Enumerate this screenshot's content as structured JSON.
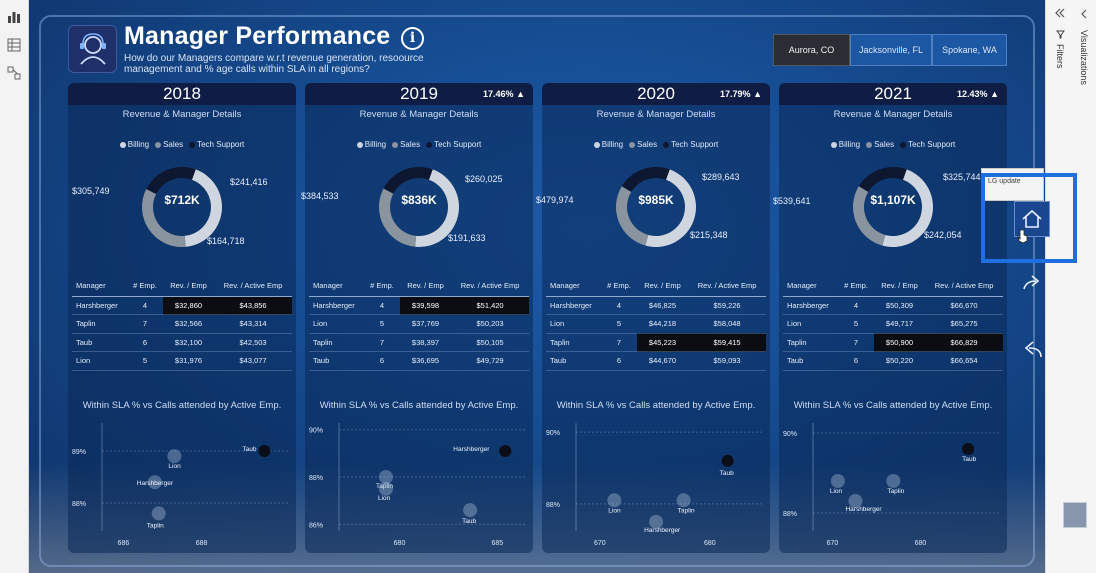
{
  "report": {
    "title": "Manager Performance",
    "subtitle": "How do our Managers compare w.r.t revenue generation, resoource management and % age calls within SLA in all regions?",
    "info_glyph": "i"
  },
  "regions": [
    {
      "label": "Aurora, CO",
      "selected": true
    },
    {
      "label": "Jacksonville, FL",
      "selected": false
    },
    {
      "label": "Spokane, WA",
      "selected": false
    }
  ],
  "legend": [
    "Billing",
    "Sales",
    "Tech Support"
  ],
  "section_title": "Revenue & Manager Details",
  "table_headers": [
    "Manager",
    "# Emp.",
    "Rev. / Emp",
    "Rev. / Active Emp"
  ],
  "scatter_title": "Within SLA % vs Calls attended by Active Emp.",
  "colors": {
    "billing": "#cfd6df",
    "sales": "#8a949f",
    "tech_support": "#0d1730",
    "highlight": "#0b0d12"
  },
  "years": [
    {
      "year": "2018",
      "growth": "",
      "donut": {
        "total": "$712K",
        "labels": [
          "$305,749",
          "$241,416",
          "$164,718"
        ],
        "values": [
          305749,
          241416,
          164718
        ]
      },
      "rows": [
        {
          "manager": "Harshberger",
          "emp": "4",
          "rev_emp": "$32,860",
          "rev_active": "$43,856",
          "hl": true
        },
        {
          "manager": "Taplin",
          "emp": "7",
          "rev_emp": "$32,566",
          "rev_active": "$43,314",
          "hl": false
        },
        {
          "manager": "Taub",
          "emp": "6",
          "rev_emp": "$32,100",
          "rev_active": "$42,503",
          "hl": false
        },
        {
          "manager": "Lion",
          "emp": "5",
          "rev_emp": "$31,976",
          "rev_active": "$43,077",
          "hl": false
        }
      ],
      "scatter": {
        "y_ticks": [
          "89%",
          "88%"
        ],
        "x_ticks": [
          "686",
          "688"
        ],
        "points": [
          {
            "label": "Taub",
            "x": 689.6,
            "y": 89.0,
            "dark": true
          },
          {
            "label": "Lion",
            "x": 687.3,
            "y": 88.9,
            "dark": false
          },
          {
            "label": "Harshberger",
            "x": 686.8,
            "y": 88.4,
            "dark": false
          },
          {
            "label": "Taplin",
            "x": 686.9,
            "y": 87.8,
            "dark": false
          }
        ]
      }
    },
    {
      "year": "2019",
      "growth": "17.46%",
      "donut": {
        "total": "$836K",
        "labels": [
          "$384,533",
          "$260,025",
          "$191,633"
        ],
        "values": [
          384533,
          260025,
          191633
        ]
      },
      "rows": [
        {
          "manager": "Harshberger",
          "emp": "4",
          "rev_emp": "$39,598",
          "rev_active": "$51,420",
          "hl": true
        },
        {
          "manager": "Lion",
          "emp": "5",
          "rev_emp": "$37,769",
          "rev_active": "$50,203",
          "hl": false
        },
        {
          "manager": "Taplin",
          "emp": "7",
          "rev_emp": "$38,397",
          "rev_active": "$50,105",
          "hl": false
        },
        {
          "manager": "Taub",
          "emp": "6",
          "rev_emp": "$36,695",
          "rev_active": "$49,729",
          "hl": false
        }
      ],
      "scatter": {
        "y_ticks": [
          "90%",
          "88%",
          "86%"
        ],
        "x_ticks": [
          "680",
          "685"
        ],
        "points": [
          {
            "label": "Harshberger",
            "x": 685.4,
            "y": 89.1,
            "dark": true
          },
          {
            "label": "Taplin",
            "x": 679.3,
            "y": 88.0,
            "dark": false
          },
          {
            "label": "Lion",
            "x": 679.3,
            "y": 87.5,
            "dark": false
          },
          {
            "label": "Taub",
            "x": 683.6,
            "y": 86.6,
            "dark": false
          }
        ]
      }
    },
    {
      "year": "2020",
      "growth": "17.79%",
      "donut": {
        "total": "$985K",
        "labels": [
          "$479,974",
          "$289,643",
          "$215,348"
        ],
        "values": [
          479974,
          289643,
          215348
        ]
      },
      "rows": [
        {
          "manager": "Harshberger",
          "emp": "4",
          "rev_emp": "$46,825",
          "rev_active": "$59,226",
          "hl": false
        },
        {
          "manager": "Lion",
          "emp": "5",
          "rev_emp": "$44,218",
          "rev_active": "$58,048",
          "hl": false
        },
        {
          "manager": "Taplin",
          "emp": "7",
          "rev_emp": "$45,223",
          "rev_active": "$59,415",
          "hl": true
        },
        {
          "manager": "Taub",
          "emp": "6",
          "rev_emp": "$44,670",
          "rev_active": "$59,093",
          "hl": false
        }
      ],
      "scatter": {
        "y_ticks": [
          "90%",
          "88%"
        ],
        "x_ticks": [
          "670",
          "680"
        ],
        "points": [
          {
            "label": "Taub",
            "x": 681.6,
            "y": 89.2,
            "dark": true
          },
          {
            "label": "Lion",
            "x": 671.3,
            "y": 88.1,
            "dark": false
          },
          {
            "label": "Taplin",
            "x": 677.6,
            "y": 88.1,
            "dark": false
          },
          {
            "label": "Harshberger",
            "x": 675.1,
            "y": 87.5,
            "dark": false
          }
        ]
      }
    },
    {
      "year": "2021",
      "growth": "12.43%",
      "donut": {
        "total": "$1,107K",
        "labels": [
          "$539,641",
          "$325,744",
          "$242,054"
        ],
        "values": [
          539641,
          325744,
          242054
        ]
      },
      "rows": [
        {
          "manager": "Harshberger",
          "emp": "4",
          "rev_emp": "$50,309",
          "rev_active": "$66,670",
          "hl": false
        },
        {
          "manager": "Lion",
          "emp": "5",
          "rev_emp": "$49,717",
          "rev_active": "$65,275",
          "hl": false
        },
        {
          "manager": "Taplin",
          "emp": "7",
          "rev_emp": "$50,900",
          "rev_active": "$66,829",
          "hl": true
        },
        {
          "manager": "Taub",
          "emp": "6",
          "rev_emp": "$50,220",
          "rev_active": "$66,654",
          "hl": false
        }
      ],
      "scatter": {
        "y_ticks": [
          "90%",
          "88%"
        ],
        "x_ticks": [
          "670",
          "680"
        ],
        "points": [
          {
            "label": "Taub",
            "x": 685.4,
            "y": 89.6,
            "dark": true
          },
          {
            "label": "Lion",
            "x": 670.6,
            "y": 88.8,
            "dark": false
          },
          {
            "label": "Taplin",
            "x": 676.9,
            "y": 88.8,
            "dark": false
          },
          {
            "label": "Harshberger",
            "x": 672.6,
            "y": 88.3,
            "dark": false
          }
        ]
      }
    }
  ],
  "right_pane": {
    "visualizations_label": "Visualizations",
    "filters_label": "Filters",
    "tooltip_text": "LG update"
  },
  "icons": [
    "report-view-icon",
    "table-view-icon",
    "model-view-icon",
    "collapse-icon",
    "filter-icon",
    "home-icon",
    "forward-icon",
    "back-icon",
    "cursor-icon"
  ]
}
